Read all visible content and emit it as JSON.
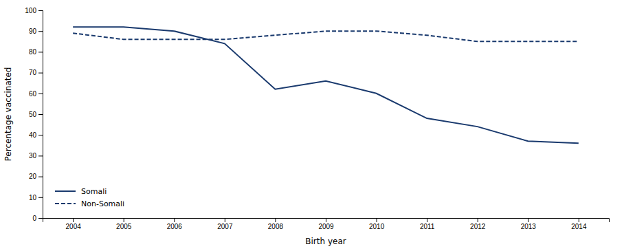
{
  "chart_data": {
    "type": "line",
    "x": [
      2004,
      2005,
      2006,
      2007,
      2008,
      2009,
      2010,
      2011,
      2012,
      2013,
      2014
    ],
    "series": [
      {
        "name": "Somali",
        "color": "#1a3a6e",
        "line_style": "solid",
        "values": [
          92,
          92,
          90,
          84,
          62,
          66,
          60,
          48,
          44,
          37,
          36
        ]
      },
      {
        "name": "Non-Somali",
        "color": "#1a3a6e",
        "line_style": "dashed",
        "values": [
          89,
          86,
          86,
          86,
          88,
          90,
          90,
          88,
          85,
          85,
          85
        ]
      }
    ],
    "xlabel": "Birth year",
    "ylabel": "Percentage vaccinated",
    "xlim": [
      2003.4,
      2014.6
    ],
    "xticks": [
      2004,
      2005,
      2006,
      2007,
      2008,
      2009,
      2010,
      2011,
      2012,
      2013,
      2014
    ],
    "ylim": [
      0,
      100
    ],
    "yticks": [
      0,
      10,
      20,
      30,
      40,
      50,
      60,
      70,
      80,
      90,
      100
    ],
    "grid": false,
    "legend": "lower left"
  }
}
